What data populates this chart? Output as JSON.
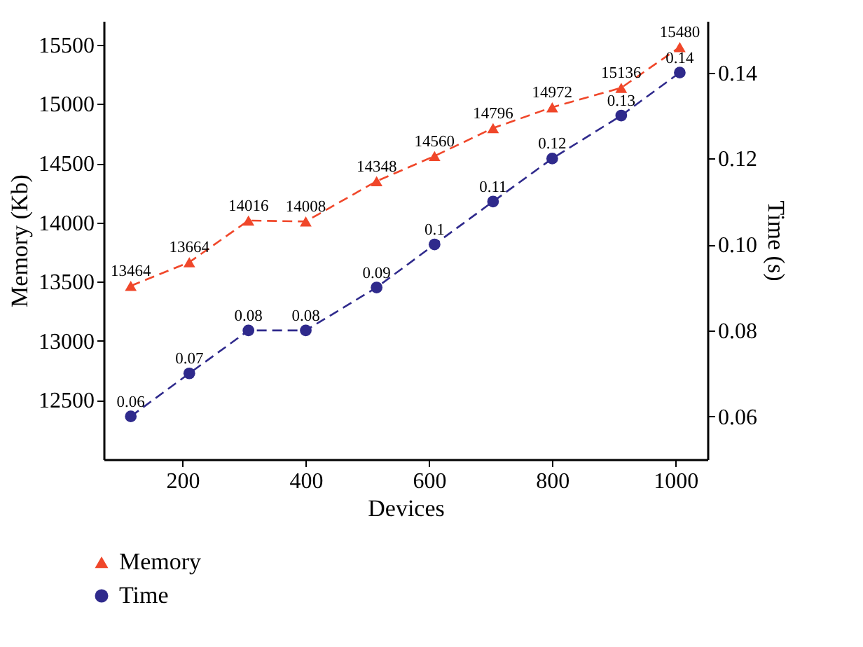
{
  "chart_data": {
    "type": "line",
    "xlabel": "Devices",
    "ylabel": "Memory (Kb)",
    "y2label": "Time (s)",
    "xlim": [
      72,
      1052
    ],
    "xticks": [
      200,
      400,
      600,
      800,
      1000
    ],
    "ylim": [
      12000,
      15700
    ],
    "yticks": [
      12500,
      13000,
      13500,
      14000,
      14500,
      15000,
      15500
    ],
    "y2lim": [
      0.05,
      0.152
    ],
    "y2ticks": [
      0.06,
      0.08,
      {
        "value": 0.1,
        "label": "0.10"
      },
      0.12,
      0.14
    ],
    "x": [
      116,
      211,
      307,
      400,
      515,
      609,
      704,
      800,
      912,
      1007
    ],
    "series": [
      {
        "name": "Memory",
        "color": "#f0472a",
        "marker": "triangle",
        "line_style": "dashed",
        "values": [
          13464,
          13664,
          14016,
          14008,
          14348,
          14560,
          14796,
          14972,
          15136,
          15480
        ]
      },
      {
        "name": "Time",
        "color": "#2f2a8c",
        "marker": "circle",
        "line_style": "dashed",
        "axis": "y2",
        "values": [
          0.06,
          0.07,
          0.08,
          0.08,
          0.09,
          0.1,
          0.11,
          0.12,
          0.13,
          0.14
        ]
      }
    ],
    "data_labels": true,
    "grid": false,
    "legend": "bottom left"
  }
}
